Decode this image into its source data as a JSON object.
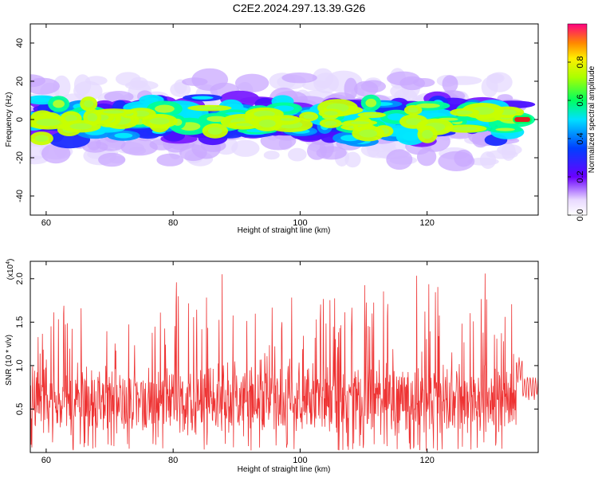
{
  "title": "C2E2.2024.297.13.39.G26",
  "colors": {
    "snr_line": "#ee3333",
    "spectrum_ridge": "#e02020"
  },
  "chart_data": [
    {
      "type": "heatmap",
      "xlabel": "Height of straight line (km)",
      "ylabel": "Frequency (Hz)",
      "xlim": [
        57.5,
        137.5
      ],
      "ylim": [
        -50,
        50
      ],
      "xticks": [
        60,
        80,
        100,
        120
      ],
      "xtick_labels": [
        "60",
        "80",
        "100",
        "120"
      ],
      "yticks": [
        -40,
        -20,
        0,
        20,
        40
      ],
      "ytick_labels": [
        "-40",
        "-20",
        "0",
        "20",
        "40"
      ],
      "colorbar": {
        "label": "Normalized spectral amplitude",
        "range": [
          0.0,
          1.0
        ],
        "ticks": [
          0.0,
          0.2,
          0.4,
          0.6,
          0.8
        ],
        "tick_labels": [
          "0.0",
          "0.2",
          "0.4",
          "0.6",
          "0.8"
        ]
      },
      "ridge": {
        "x_start": 133.5,
        "x_end": 136.5,
        "frequency": 0
      }
    },
    {
      "type": "line",
      "xlabel": "Height of straight line (km)",
      "ylabel": "SNR (10 * v/v)",
      "scale_label": "(x10",
      "scale_exponent": "4",
      "scale_close": ")",
      "xlim": [
        57.5,
        137.5
      ],
      "ylim": [
        0,
        2.2
      ],
      "xticks": [
        60,
        80,
        100,
        120
      ],
      "xtick_labels": [
        "60",
        "80",
        "100",
        "120"
      ],
      "yticks": [
        0.5,
        1.0,
        1.5,
        2.0
      ],
      "ytick_labels": [
        "0.5",
        "1.0",
        "1.5",
        "2.0"
      ],
      "series": [
        {
          "x_start": 57.5,
          "x_end": 137.5,
          "noise_band": [
            0.3,
            0.9
          ],
          "spike_max": 2.15,
          "tail_level": 0.75
        }
      ]
    }
  ]
}
